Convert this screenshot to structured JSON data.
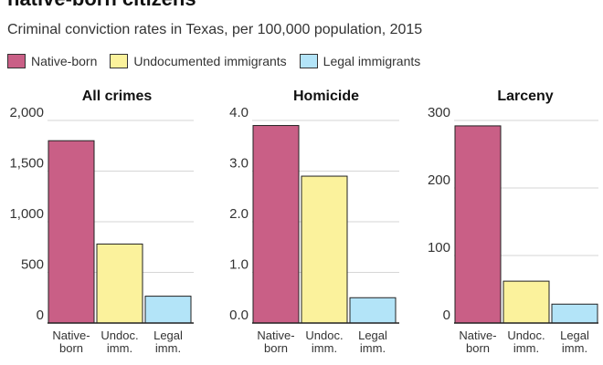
{
  "headline": "native-born citizens",
  "subtitle": "Criminal conviction rates in Texas, per 100,000 population, 2015",
  "legend": [
    {
      "label": "Native-born",
      "color": "#c95f86"
    },
    {
      "label": "Undocumented immigrants",
      "color": "#fbf29c"
    },
    {
      "label": "Legal immigrants",
      "color": "#b3e4f8"
    }
  ],
  "chart_data": [
    {
      "type": "bar",
      "title": "All crimes",
      "categories": [
        "Native-born",
        "Undoc. imm.",
        "Legal imm."
      ],
      "category_lines": [
        [
          "Native-",
          "born"
        ],
        [
          "Undoc.",
          "imm."
        ],
        [
          "Legal",
          "imm."
        ]
      ],
      "values": [
        1800,
        780,
        265
      ],
      "colors": [
        "#c95f86",
        "#fbf29c",
        "#b3e4f8"
      ],
      "ylim": [
        0,
        2000
      ],
      "yticks": [
        0,
        500,
        1000,
        1500,
        2000
      ],
      "ytick_labels": [
        "0",
        "500",
        "1,000",
        "1,500",
        "2,000"
      ],
      "grid": true
    },
    {
      "type": "bar",
      "title": "Homicide",
      "categories": [
        "Native-born",
        "Undoc. imm.",
        "Legal imm."
      ],
      "category_lines": [
        [
          "Native-",
          "born"
        ],
        [
          "Undoc.",
          "imm."
        ],
        [
          "Legal",
          "imm."
        ]
      ],
      "values": [
        3.9,
        2.9,
        0.5
      ],
      "colors": [
        "#c95f86",
        "#fbf29c",
        "#b3e4f8"
      ],
      "ylim": [
        0,
        4
      ],
      "yticks": [
        0,
        1,
        2,
        3,
        4
      ],
      "ytick_labels": [
        "0.0",
        "1.0",
        "2.0",
        "3.0",
        "4.0"
      ],
      "grid": true
    },
    {
      "type": "bar",
      "title": "Larceny",
      "categories": [
        "Native-born",
        "Undoc. imm.",
        "Legal imm."
      ],
      "category_lines": [
        [
          "Native-",
          "born"
        ],
        [
          "Undoc.",
          "imm."
        ],
        [
          "Legal",
          "imm."
        ]
      ],
      "values": [
        292,
        62,
        28
      ],
      "colors": [
        "#c95f86",
        "#fbf29c",
        "#b3e4f8"
      ],
      "ylim": [
        0,
        300
      ],
      "yticks": [
        0,
        100,
        200,
        300
      ],
      "ytick_labels": [
        "0",
        "100",
        "200",
        "300"
      ],
      "grid": true
    }
  ]
}
